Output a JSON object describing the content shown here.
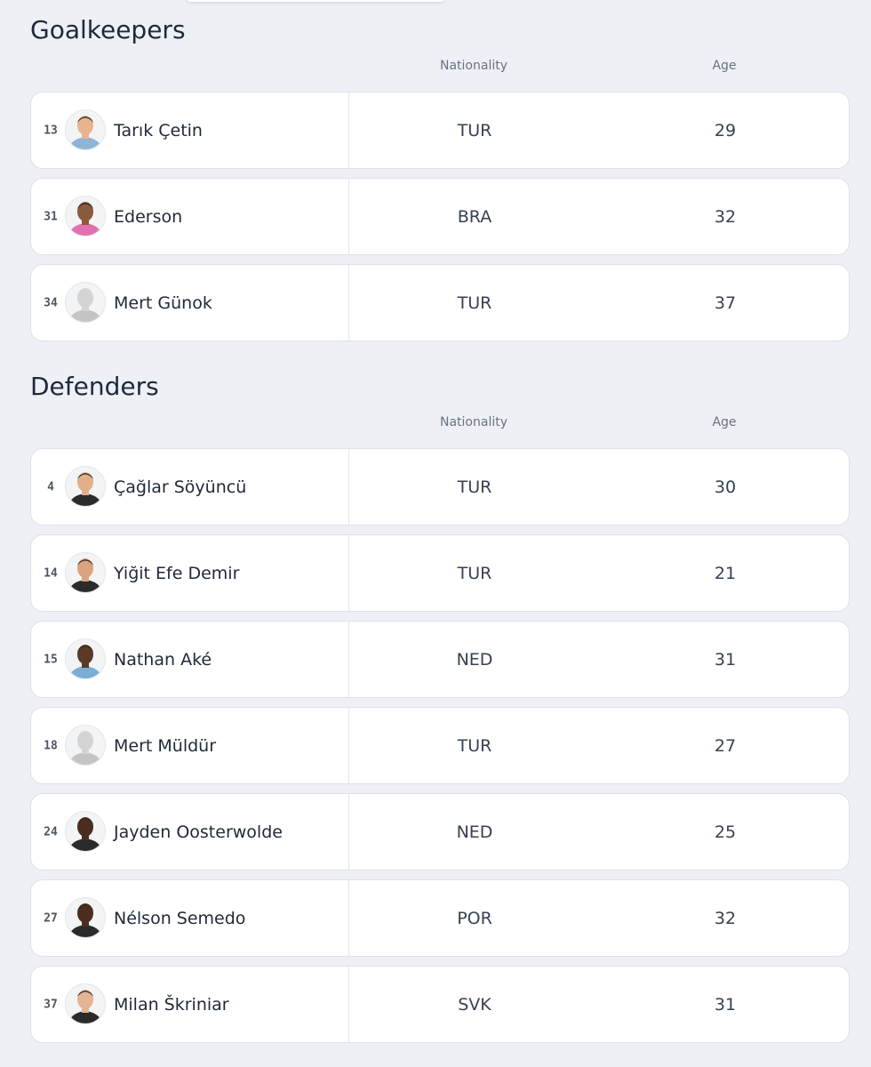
{
  "sections": [
    {
      "title": "Goalkeepers",
      "columns": [
        "Nationality",
        "Age"
      ],
      "rows": [
        {
          "number": "13",
          "name": "Tarık Çetin",
          "nationality": "TUR",
          "age": "29"
        },
        {
          "number": "31",
          "name": "Ederson",
          "nationality": "BRA",
          "age": "32"
        },
        {
          "number": "34",
          "name": "Mert Günok",
          "nationality": "TUR",
          "age": "37"
        }
      ]
    },
    {
      "title": "Defenders",
      "columns": [
        "Nationality",
        "Age"
      ],
      "rows": [
        {
          "number": "4",
          "name": "Çağlar Söyüncü",
          "nationality": "TUR",
          "age": "30"
        },
        {
          "number": "14",
          "name": "Yiğit Efe Demir",
          "nationality": "TUR",
          "age": "21"
        },
        {
          "number": "15",
          "name": "Nathan Aké",
          "nationality": "NED",
          "age": "31"
        },
        {
          "number": "18",
          "name": "Mert Müldür",
          "nationality": "TUR",
          "age": "27"
        },
        {
          "number": "24",
          "name": "Jayden Oosterwolde",
          "nationality": "NED",
          "age": "25"
        },
        {
          "number": "27",
          "name": "Nélson Semedo",
          "nationality": "POR",
          "age": "32"
        },
        {
          "number": "37",
          "name": "Milan Škriniar",
          "nationality": "SVK",
          "age": "31"
        }
      ]
    }
  ]
}
